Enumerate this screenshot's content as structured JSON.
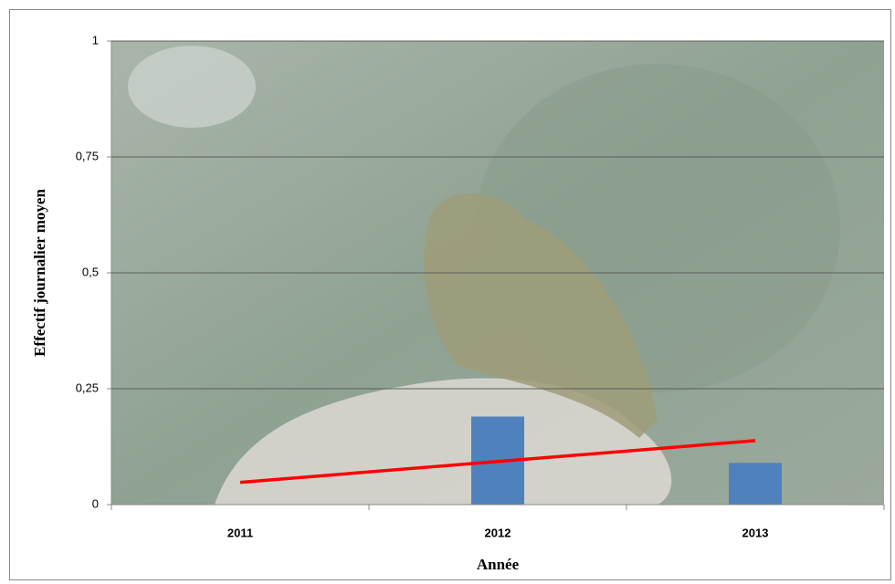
{
  "chart_data": {
    "type": "bar",
    "x_label": "Année",
    "y_label": "Effectif journalier moyen",
    "categories": [
      "2011",
      "2012",
      "2013"
    ],
    "series": [
      {
        "type": "bar",
        "color": "#4f81bd",
        "values": [
          0,
          0.19,
          0.09
        ]
      },
      {
        "type": "line",
        "color": "#ff0000",
        "values": [
          0.048,
          0.093,
          0.138
        ]
      }
    ],
    "ylim": [
      0,
      1
    ],
    "yticks": [
      0,
      {
        "value": 0.25,
        "label": "0,25"
      },
      {
        "value": 0.5,
        "label": "0,5"
      },
      {
        "value": 0.75,
        "label": "0,75"
      },
      1
    ],
    "grid": true
  }
}
